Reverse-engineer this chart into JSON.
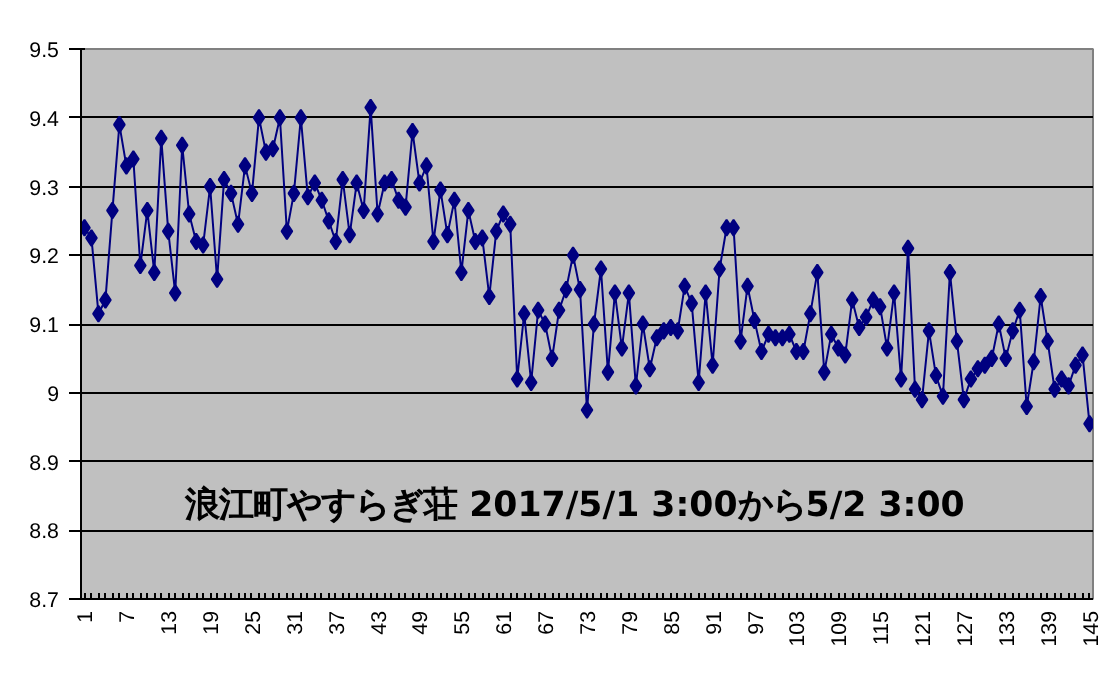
{
  "chart_data": {
    "type": "line",
    "title": "浪江町やすらぎ荘  2017/5/1 3:00から5/2  3:00",
    "categories": [
      "1",
      null,
      null,
      null,
      null,
      null,
      "7",
      null,
      null,
      null,
      null,
      null,
      "13",
      null,
      null,
      null,
      null,
      null,
      "19",
      null,
      null,
      null,
      null,
      null,
      "25",
      null,
      null,
      null,
      null,
      null,
      "31",
      null,
      null,
      null,
      null,
      null,
      "37",
      null,
      null,
      null,
      null,
      null,
      "43",
      null,
      null,
      null,
      null,
      null,
      "49",
      null,
      null,
      null,
      null,
      null,
      "55",
      null,
      null,
      null,
      null,
      null,
      "61",
      null,
      null,
      null,
      null,
      null,
      "67",
      null,
      null,
      null,
      null,
      null,
      "73",
      null,
      null,
      null,
      null,
      null,
      "79",
      null,
      null,
      null,
      null,
      null,
      "85",
      null,
      null,
      null,
      null,
      null,
      "91",
      null,
      null,
      null,
      null,
      null,
      "97",
      null,
      null,
      null,
      null,
      null,
      "103",
      null,
      null,
      null,
      null,
      null,
      "109",
      null,
      null,
      null,
      null,
      null,
      "115",
      null,
      null,
      null,
      null,
      null,
      "121",
      null,
      null,
      null,
      null,
      null,
      "127",
      null,
      null,
      null,
      null,
      null,
      "133",
      null,
      null,
      null,
      null,
      null,
      "139",
      null,
      null,
      null,
      null,
      null,
      "145"
    ],
    "series": [
      {
        "color": "#000080",
        "values": [
          9.24,
          9.225,
          9.115,
          9.135,
          9.265,
          9.39,
          9.33,
          9.34,
          9.185,
          9.265,
          9.175,
          9.37,
          9.235,
          9.145,
          9.36,
          9.26,
          9.22,
          9.215,
          9.3,
          9.165,
          9.31,
          9.29,
          9.245,
          9.33,
          9.29,
          9.4,
          9.35,
          9.355,
          9.4,
          9.235,
          9.29,
          9.4,
          9.285,
          9.305,
          9.28,
          9.25,
          9.22,
          9.31,
          9.23,
          9.305,
          9.265,
          9.415,
          9.26,
          9.305,
          9.31,
          9.28,
          9.27,
          9.38,
          9.305,
          9.33,
          9.22,
          9.295,
          9.23,
          9.28,
          9.175,
          9.265,
          9.22,
          9.225,
          9.14,
          9.235,
          9.26,
          9.245,
          9.02,
          9.115,
          9.015,
          9.12,
          9.1,
          9.05,
          9.12,
          9.15,
          9.2,
          9.15,
          8.975,
          9.1,
          9.18,
          9.03,
          9.145,
          9.065,
          9.145,
          9.01,
          9.1,
          9.035,
          9.08,
          9.09,
          9.095,
          9.09,
          9.155,
          9.13,
          9.015,
          9.145,
          9.04,
          9.18,
          9.24,
          9.24,
          9.075,
          9.155,
          9.105,
          9.06,
          9.085,
          9.08,
          9.08,
          9.085,
          9.06,
          9.06,
          9.115,
          9.175,
          9.03,
          9.085,
          9.065,
          9.055,
          9.135,
          9.095,
          9.11,
          9.135,
          9.125,
          9.065,
          9.145,
          9.02,
          9.21,
          9.005,
          8.99,
          9.09,
          9.025,
          8.995,
          9.175,
          9.075,
          8.99,
          9.02,
          9.035,
          9.04,
          9.05,
          9.1,
          9.05,
          9.09,
          9.12,
          8.98,
          9.045,
          9.14,
          9.075,
          9.005,
          9.02,
          9.01,
          9.04,
          9.055,
          8.955
        ]
      }
    ],
    "ylim": [
      8.7,
      9.5
    ],
    "yticks": [
      8.7,
      8.8,
      8.9,
      9,
      9.1,
      9.2,
      9.3,
      9.4,
      9.5
    ],
    "grid": "y",
    "marker": "diamond",
    "line_style": "solid"
  }
}
